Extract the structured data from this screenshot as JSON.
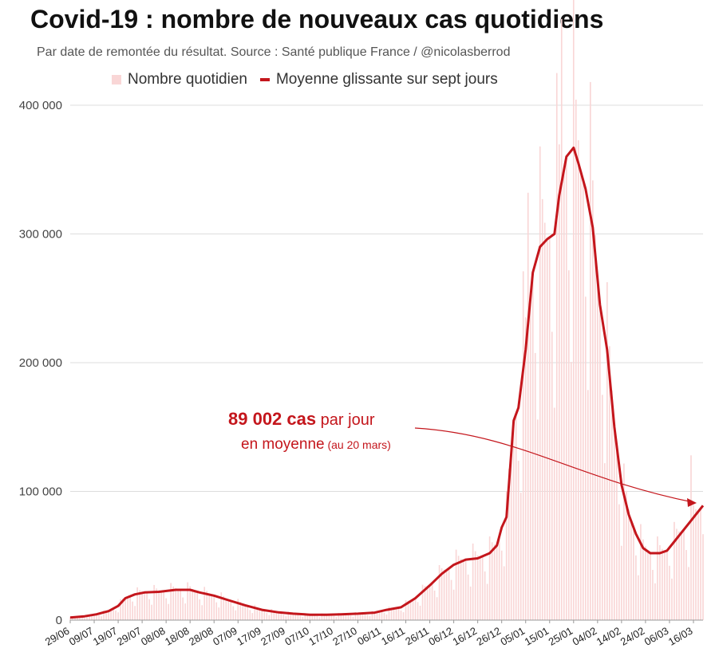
{
  "title": "Covid-19 : nombre de nouveaux cas quotidiens",
  "subtitle": "Par date de remontée du résultat. Source : Santé publique France / @nicolasberrod",
  "legend": {
    "bars": "Nombre quotidien",
    "line": "Moyenne glissante sur sept jours"
  },
  "annotation": {
    "value": "89 002 cas",
    "rest_line1": " par jour",
    "line2": "en moyenne",
    "note": " (au 20 mars)"
  },
  "colors": {
    "bar": "#f9d6d6",
    "line": "#c4161c",
    "grid": "#dddddd"
  },
  "chart_data": {
    "type": "bar",
    "title": "Covid-19 : nombre de nouveaux cas quotidiens",
    "ylim": [
      0,
      400000
    ],
    "yticks": [
      0,
      100000,
      200000,
      300000,
      400000
    ],
    "ytick_labels": [
      "0",
      "100 000",
      "200 000",
      "300 000",
      "400 000"
    ],
    "xtick_labels": [
      "29/06",
      "09/07",
      "19/07",
      "29/07",
      "08/08",
      "18/08",
      "28/08",
      "07/09",
      "17/09",
      "27/09",
      "07/10",
      "17/10",
      "27/10",
      "06/11",
      "16/11",
      "26/11",
      "06/12",
      "16/12",
      "26/12",
      "05/01",
      "15/01",
      "25/01",
      "04/02",
      "14/02",
      "24/02",
      "06/03",
      "16/03"
    ],
    "grid": true,
    "legend_position": "top",
    "x_start": "2021-06-29",
    "x_end": "2022-03-20",
    "series": [
      {
        "name": "Moyenne glissante sur sept jours",
        "type": "line",
        "points": [
          [
            "2021-06-29",
            2000
          ],
          [
            "2021-07-05",
            3000
          ],
          [
            "2021-07-10",
            4500
          ],
          [
            "2021-07-15",
            7000
          ],
          [
            "2021-07-19",
            11000
          ],
          [
            "2021-07-22",
            17000
          ],
          [
            "2021-07-26",
            20000
          ],
          [
            "2021-07-30",
            21500
          ],
          [
            "2021-08-05",
            22000
          ],
          [
            "2021-08-12",
            23500
          ],
          [
            "2021-08-18",
            23500
          ],
          [
            "2021-08-22",
            21500
          ],
          [
            "2021-08-28",
            19000
          ],
          [
            "2021-09-03",
            15500
          ],
          [
            "2021-09-10",
            11500
          ],
          [
            "2021-09-17",
            8000
          ],
          [
            "2021-09-24",
            6000
          ],
          [
            "2021-09-30",
            5000
          ],
          [
            "2021-10-07",
            4200
          ],
          [
            "2021-10-14",
            4200
          ],
          [
            "2021-10-20",
            4500
          ],
          [
            "2021-10-27",
            5000
          ],
          [
            "2021-11-03",
            5800
          ],
          [
            "2021-11-08",
            8000
          ],
          [
            "2021-11-14",
            10000
          ],
          [
            "2021-11-20",
            17000
          ],
          [
            "2021-11-26",
            27000
          ],
          [
            "2021-12-01",
            36000
          ],
          [
            "2021-12-06",
            43000
          ],
          [
            "2021-12-11",
            47000
          ],
          [
            "2021-12-16",
            48000
          ],
          [
            "2021-12-21",
            52000
          ],
          [
            "2021-12-24",
            58000
          ],
          [
            "2021-12-26",
            72000
          ],
          [
            "2021-12-28",
            80000
          ],
          [
            "2021-12-31",
            155000
          ],
          [
            "2022-01-02",
            165000
          ],
          [
            "2022-01-05",
            210000
          ],
          [
            "2022-01-08",
            270000
          ],
          [
            "2022-01-11",
            290000
          ],
          [
            "2022-01-14",
            296000
          ],
          [
            "2022-01-17",
            300000
          ],
          [
            "2022-01-19",
            330000
          ],
          [
            "2022-01-22",
            360000
          ],
          [
            "2022-01-25",
            367000
          ],
          [
            "2022-01-27",
            355000
          ],
          [
            "2022-01-30",
            335000
          ],
          [
            "2022-02-02",
            305000
          ],
          [
            "2022-02-05",
            245000
          ],
          [
            "2022-02-08",
            210000
          ],
          [
            "2022-02-11",
            150000
          ],
          [
            "2022-02-14",
            105000
          ],
          [
            "2022-02-17",
            82000
          ],
          [
            "2022-02-20",
            67000
          ],
          [
            "2022-02-23",
            56000
          ],
          [
            "2022-02-26",
            52000
          ],
          [
            "2022-03-02",
            52000
          ],
          [
            "2022-03-05",
            54000
          ],
          [
            "2022-03-08",
            61000
          ],
          [
            "2022-03-11",
            68000
          ],
          [
            "2022-03-14",
            75000
          ],
          [
            "2022-03-17",
            82000
          ],
          [
            "2022-03-20",
            89002
          ]
        ]
      },
      {
        "name": "Nombre quotidien",
        "type": "bar",
        "note": "daily counts shown as bars around the moving average; notable peaks listed",
        "peaks": [
          [
            "2022-01-04",
            271000
          ],
          [
            "2022-01-06",
            332000
          ],
          [
            "2022-01-11",
            368000
          ],
          [
            "2022-01-18",
            425000
          ],
          [
            "2022-01-20",
            467000
          ],
          [
            "2022-01-25",
            501000
          ],
          [
            "2022-02-01",
            418000
          ],
          [
            "2022-03-15",
            128000
          ]
        ]
      }
    ],
    "annotations": [
      {
        "text": "89 002 cas par jour en moyenne (au 20 mars)",
        "x": "2022-03-20",
        "y": 89002
      }
    ]
  }
}
